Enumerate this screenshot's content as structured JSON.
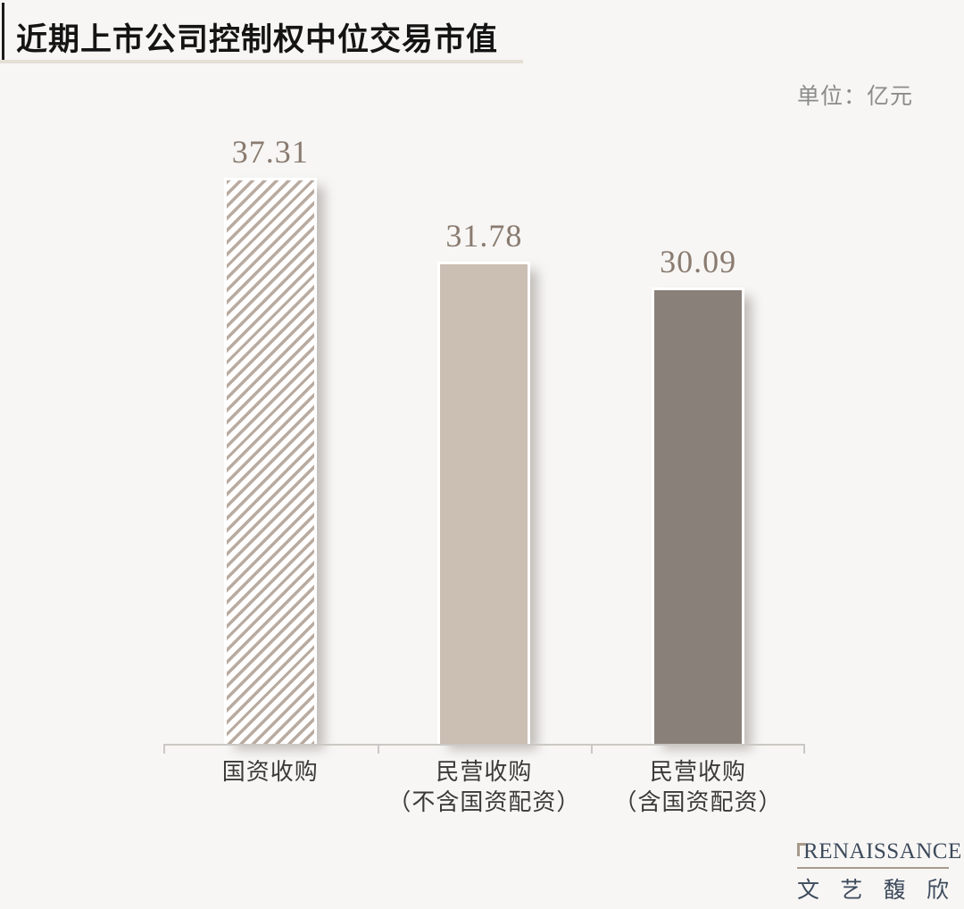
{
  "header": {
    "title": "近期上市公司控制权中位交易市值",
    "unit_label": "单位：亿元"
  },
  "chart_data": {
    "type": "bar",
    "title": "近期上市公司控制权中位交易市值",
    "unit": "亿元",
    "categories": [
      "国资收购",
      "民营收购（不含国资配资）",
      "民营收购（含国资配资）"
    ],
    "category_lines": [
      [
        "国资收购",
        ""
      ],
      [
        "民营收购",
        "（不含国资配资）"
      ],
      [
        "民营收购",
        "（含国资配资）"
      ]
    ],
    "values": [
      37.31,
      31.78,
      30.09
    ],
    "value_labels": [
      "37.31",
      "31.78",
      "30.09"
    ],
    "ylim": [
      0,
      40
    ],
    "grid": false,
    "legend": "none",
    "bar_styles": [
      "hatched",
      "solid-light",
      "solid-dark"
    ],
    "colors": {
      "hatch_stripe": "#b9aba0",
      "bar_light_fill": "#cbbfb3",
      "bar_dark_fill": "#8a807a",
      "value_label_text": "#8a7b70",
      "axis_line": "#cbc8c4",
      "background": "#f7f6f4"
    }
  },
  "footer": {
    "brand_en": "RENAISSANCE",
    "brand_en_rest": "ENAISSANCE",
    "brand_r": "R",
    "brand_cn": "文艺馥欣",
    "brand_cn_chars": [
      "文",
      "艺",
      "馥",
      "欣"
    ]
  }
}
